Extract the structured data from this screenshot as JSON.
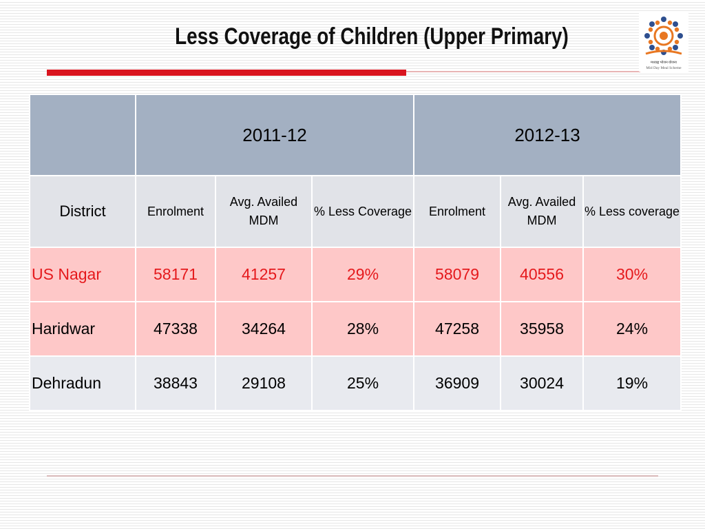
{
  "slide": {
    "title": "Less Coverage of Children (Upper Primary)",
    "logo": {
      "hindi_text": "मध्याह्न भोजन योजना",
      "caption": "Mid Day Meal Scheme"
    }
  },
  "table": {
    "year_headers": [
      "2011-12",
      "2012-13"
    ],
    "column_headers": {
      "district": "District",
      "y1_enrolment": "Enrolment",
      "y1_avg": "Avg. Availed MDM",
      "y1_less": "% Less Coverage",
      "y2_enrolment": "Enrolment",
      "y2_avg": "Avg. Availed MDM",
      "y2_less": "% Less coverage"
    },
    "rows": [
      {
        "district": "US Nagar",
        "y1_enrolment": "58171",
        "y1_avg": "41257",
        "y1_less": "29%",
        "y2_enrolment": "58079",
        "y2_avg": "40556",
        "y2_less": "30%"
      },
      {
        "district": "Haridwar",
        "y1_enrolment": "47338",
        "y1_avg": "34264",
        "y1_less": "28%",
        "y2_enrolment": "47258",
        "y2_avg": "35958",
        "y2_less": "24%"
      },
      {
        "district": "Dehradun",
        "y1_enrolment": "38843",
        "y1_avg": "29108",
        "y1_less": "25%",
        "y2_enrolment": "36909",
        "y2_avg": "30024",
        "y2_less": "19%"
      }
    ],
    "colors": {
      "year_header_bg": "#a3b0c2",
      "column_header_bg": "#e1e3e8",
      "pink_row_bg": "#fec8c8",
      "grey_row_bg": "#e8eaef",
      "highlight_text": "#e5191c",
      "accent_red": "#d9141e"
    }
  }
}
